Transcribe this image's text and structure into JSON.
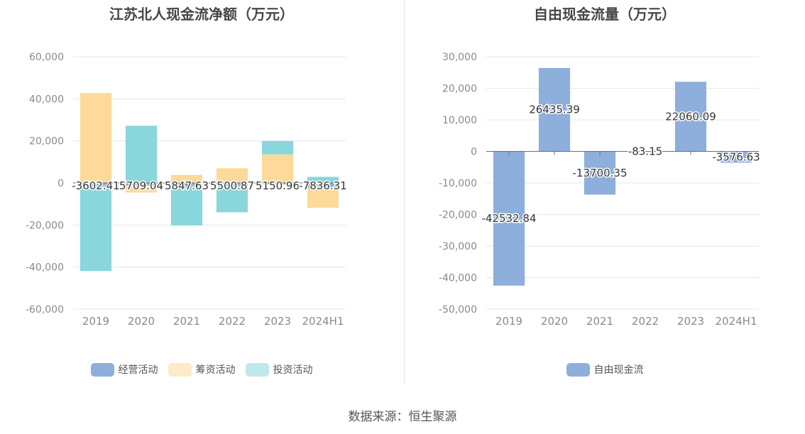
{
  "source_text": "数据来源：恒生聚源",
  "chart_data": [
    {
      "type": "bar",
      "stacked": true,
      "title": "江苏北人现金流净额（万元）",
      "categories": [
        "2019",
        "2020",
        "2021",
        "2022",
        "2023",
        "2024H1"
      ],
      "ylim": [
        -60000,
        60000
      ],
      "yticks": [
        60000,
        40000,
        20000,
        0,
        -20000,
        -40000,
        -60000
      ],
      "ytick_labels": [
        "60,000",
        "40,000",
        "20,000",
        "0",
        "-20,000",
        "-40,000",
        "-60,000"
      ],
      "legend_position": "bottom",
      "series": [
        {
          "name": "经营活动",
          "color": "#8eaedb",
          "values": [
            -1250,
            -1150,
            -1200,
            -1250,
            -650,
            -2400
          ]
        },
        {
          "name": "筹资活动",
          "color": "#fdd99a",
          "values": [
            42800,
            -3400,
            3800,
            7000,
            13600,
            -9400
          ]
        },
        {
          "name": "投资活动",
          "color": "#89d6dc",
          "values": [
            -40600,
            27200,
            -19000,
            -12700,
            6300,
            2900
          ]
        }
      ],
      "data_labels": [
        "-3602.41",
        "5709.04",
        "5847.63",
        "5500.87",
        "5150.96",
        "-7836.31"
      ]
    },
    {
      "type": "bar",
      "title": "自由现金流量（万元）",
      "categories": [
        "2019",
        "2020",
        "2021",
        "2022",
        "2023",
        "2024H1"
      ],
      "ylim": [
        -50000,
        30000
      ],
      "yticks": [
        30000,
        20000,
        10000,
        0,
        -10000,
        -20000,
        -30000,
        -40000,
        -50000
      ],
      "ytick_labels": [
        "30,000",
        "20,000",
        "10,000",
        "0",
        "-10,000",
        "-20,000",
        "-30,000",
        "-40,000",
        "-50,000"
      ],
      "legend_position": "bottom",
      "series": [
        {
          "name": "自由现金流",
          "color": "#8eaedb",
          "values": [
            -42532.84,
            26435.39,
            -13700.35,
            -83.15,
            22060.09,
            -3576.63
          ]
        }
      ],
      "data_labels": [
        "-42532.84",
        "26435.39",
        "-13700.35",
        "-83.15",
        "22060.09",
        "-3576.63"
      ]
    }
  ]
}
